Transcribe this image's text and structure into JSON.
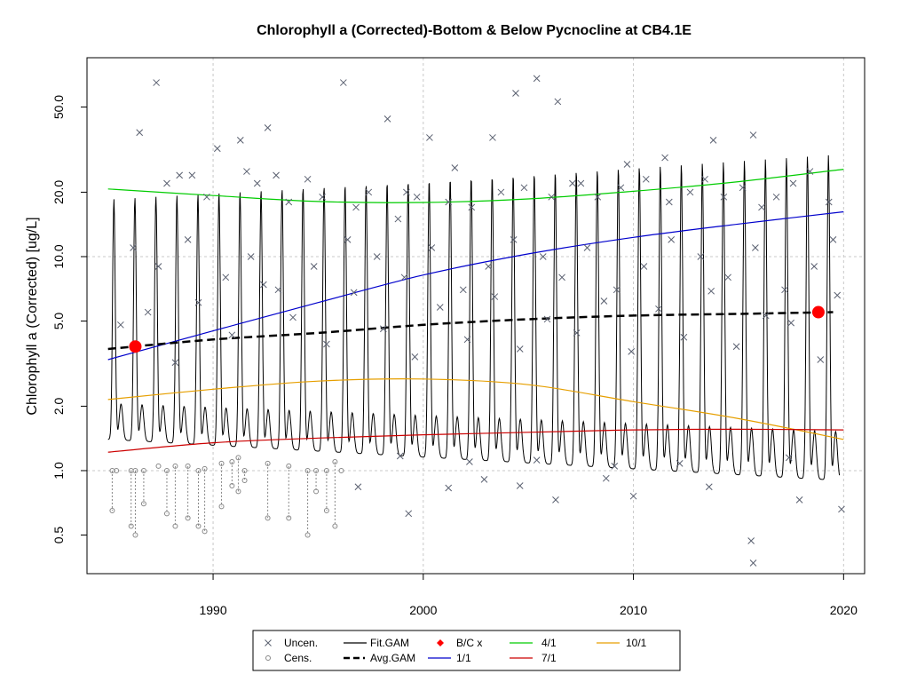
{
  "chart_data": {
    "type": "line",
    "title": "Chlorophyll a (Corrected)-Bottom & Below Pycnocline at CB4.1E",
    "xlabel": "",
    "ylabel": "Chlorophyll a (Corrected) [ug/L]",
    "yscale": "log",
    "xlim": [
      1984,
      2021
    ],
    "ylim": [
      0.33,
      85
    ],
    "x_ticks": [
      1990,
      2000,
      2010,
      2020
    ],
    "y_ticks": [
      0.5,
      1.0,
      2.0,
      5.0,
      10.0,
      20.0,
      50.0
    ],
    "grid": true,
    "legend_position": "bottom",
    "series": [
      {
        "name": "4/1",
        "color": "#00cc00",
        "x": [
          1985,
          1990,
          1995,
          2000,
          2005,
          2010,
          2015,
          2020
        ],
        "y": [
          20.7,
          19.3,
          18.1,
          17.9,
          18.6,
          20.2,
          22.4,
          25.6
        ]
      },
      {
        "name": "1/1",
        "color": "#0000cc",
        "x": [
          1985,
          1990,
          1995,
          2000,
          2005,
          2010,
          2015,
          2020
        ],
        "y": [
          3.3,
          4.5,
          6.1,
          8.2,
          10.3,
          12.3,
          14.2,
          16.2
        ]
      },
      {
        "name": "10/1",
        "color": "#e69f00",
        "x": [
          1985,
          1990,
          1995,
          2000,
          2005,
          2010,
          2015,
          2020
        ],
        "y": [
          2.15,
          2.4,
          2.62,
          2.68,
          2.52,
          2.1,
          1.75,
          1.4
        ]
      },
      {
        "name": "7/1",
        "color": "#cc0000",
        "x": [
          1985,
          1990,
          1995,
          2000,
          2005,
          2010,
          2015,
          2020
        ],
        "y": [
          1.22,
          1.35,
          1.42,
          1.47,
          1.51,
          1.55,
          1.56,
          1.55
        ]
      },
      {
        "name": "Avg.GAM",
        "color": "#000000",
        "x": [
          1985,
          1990,
          1995,
          2000,
          2005,
          2010,
          2015,
          2019.5
        ],
        "y": [
          3.7,
          4.1,
          4.4,
          4.8,
          5.1,
          5.3,
          5.4,
          5.5
        ]
      },
      {
        "name": "Fit.GAM",
        "color": "#000000",
        "x_start": 1985,
        "x_end": 2019.8,
        "peak_start": 18.5,
        "peak_end": 30,
        "trough_start": 1.4,
        "trough_end": 0.9
      }
    ],
    "bc_points": {
      "name": "B/C x",
      "color": "#ff0000",
      "x": [
        1986.3,
        2018.8
      ],
      "y": [
        3.8,
        5.5
      ]
    },
    "uncensored": {
      "name": "Uncen.",
      "x": [
        1986.5,
        1987.3,
        1989,
        1990.2,
        1991.3,
        1992.6,
        1993,
        1994.5,
        1996.2,
        1998.3,
        1999.2,
        2000.3,
        2001.5,
        2003.3,
        2004.4,
        2005.4,
        2006.4,
        2007.5,
        2009.7,
        2011.5,
        2013.8,
        2015.7,
        1987.8,
        1988.4,
        1989.7,
        1991.6,
        1992.1,
        1993.6,
        1995.2,
        1996.8,
        1997.4,
        1998.8,
        1999.7,
        2001.2,
        2002.3,
        2003.7,
        2004.8,
        2006.1,
        2007.1,
        2008.3,
        2009.4,
        2010.6,
        2011.7,
        2012.7,
        2013.4,
        2014.3,
        2015.2,
        2016.1,
        2016.8,
        2017.6,
        2018.4,
        2019.3,
        1986.2,
        1987.4,
        1988.8,
        1990.6,
        1991.8,
        1993.1,
        1994.8,
        1996.4,
        1997.8,
        1999.1,
        2000.4,
        2001.9,
        2003.1,
        2004.3,
        2005.7,
        2006.6,
        2007.8,
        2009.2,
        2010.5,
        2011.8,
        2013.2,
        2014.5,
        2015.8,
        2017.2,
        2018.6,
        2019.5,
        1985.6,
        1986.9,
        1988.2,
        1989.3,
        1990.9,
        1992.4,
        1993.8,
        1995.4,
        1996.7,
        1998.1,
        1999.6,
        2000.8,
        2002.1,
        2003.4,
        2004.6,
        2005.9,
        2007.3,
        2008.6,
        2009.9,
        2011.2,
        2012.4,
        2013.7,
        2014.9,
        2016.3,
        2017.5,
        2018.9,
        2019.7,
        2015.6,
        2015.7,
        2019.9,
        2017.9,
        2013.6,
        2010.0,
        2008.7,
        2006.3,
        2004.6,
        2002.9,
        2001.2,
        1999.3,
        1996.9,
        1998.9,
        2002.2,
        2005.4,
        2009.1,
        2012.2,
        2017.4
      ],
      "y": [
        38,
        65,
        24,
        32,
        35,
        40,
        24,
        23,
        65,
        44,
        20,
        36,
        26,
        36,
        58,
        68,
        53,
        22,
        27,
        29,
        35,
        37,
        22,
        24,
        19,
        25,
        22,
        18,
        19,
        17,
        20,
        15,
        19,
        18,
        17,
        20,
        21,
        19,
        22,
        19,
        21,
        23,
        18,
        20,
        23,
        19,
        21,
        17,
        19,
        22,
        25,
        18,
        11,
        9,
        12,
        8,
        10,
        7,
        9,
        12,
        10,
        8,
        11,
        7,
        9,
        12,
        10,
        8,
        11,
        7,
        9,
        12,
        10,
        8,
        11,
        7,
        9,
        12,
        4.8,
        5.5,
        3.2,
        6.1,
        4.3,
        7.4,
        5.2,
        3.9,
        6.8,
        4.6,
        3.4,
        5.8,
        4.1,
        6.5,
        3.7,
        5.1,
        4.4,
        6.2,
        3.6,
        5.7,
        4.2,
        6.9,
        3.8,
        5.3,
        4.9,
        3.3,
        6.6,
        0.47,
        0.37,
        0.66,
        0.73,
        0.84,
        0.76,
        0.92,
        0.73,
        0.85,
        0.91,
        0.83,
        0.63,
        0.84,
        1.17,
        1.1,
        1.12,
        1.05,
        1.08,
        1.15
      ]
    },
    "censored": {
      "name": "Cens.",
      "x": [
        1985.2,
        1985.4,
        1986.1,
        1986.3,
        1986.7,
        1987.4,
        1987.8,
        1988.2,
        1988.8,
        1989.3,
        1989.6,
        1990.4,
        1990.9,
        1991.2,
        1991.5,
        1992.6,
        1993.6,
        1994.5,
        1994.9,
        1995.4,
        1995.8,
        1996.1
      ],
      "y_top": [
        1.0,
        1.0,
        1.0,
        1.0,
        1.0,
        1.05,
        1.0,
        1.05,
        1.05,
        1.0,
        1.02,
        1.08,
        1.1,
        1.15,
        1.0,
        1.08,
        1.05,
        1.0,
        1.0,
        1.0,
        1.1,
        1.0
      ],
      "y_bottom": [
        0.65,
        1.0,
        0.55,
        0.5,
        0.7,
        1.05,
        0.63,
        0.55,
        0.6,
        0.55,
        0.52,
        0.68,
        0.85,
        0.8,
        0.9,
        0.6,
        0.6,
        0.5,
        0.8,
        0.65,
        0.55,
        1.0
      ]
    }
  },
  "legend": {
    "items": [
      {
        "label": "Uncen.",
        "symbol": "x"
      },
      {
        "label": "Fit.GAM",
        "symbol": "line-black"
      },
      {
        "label": "B/C x",
        "symbol": "diamond-red"
      },
      {
        "label": "4/1",
        "symbol": "line-green"
      },
      {
        "label": "10/1",
        "symbol": "line-orange"
      },
      {
        "label": "Cens.",
        "symbol": "circle"
      },
      {
        "label": "Avg.GAM",
        "symbol": "dash-black"
      },
      {
        "label": "1/1",
        "symbol": "line-blue"
      },
      {
        "label": "7/1",
        "symbol": "line-red"
      }
    ]
  }
}
